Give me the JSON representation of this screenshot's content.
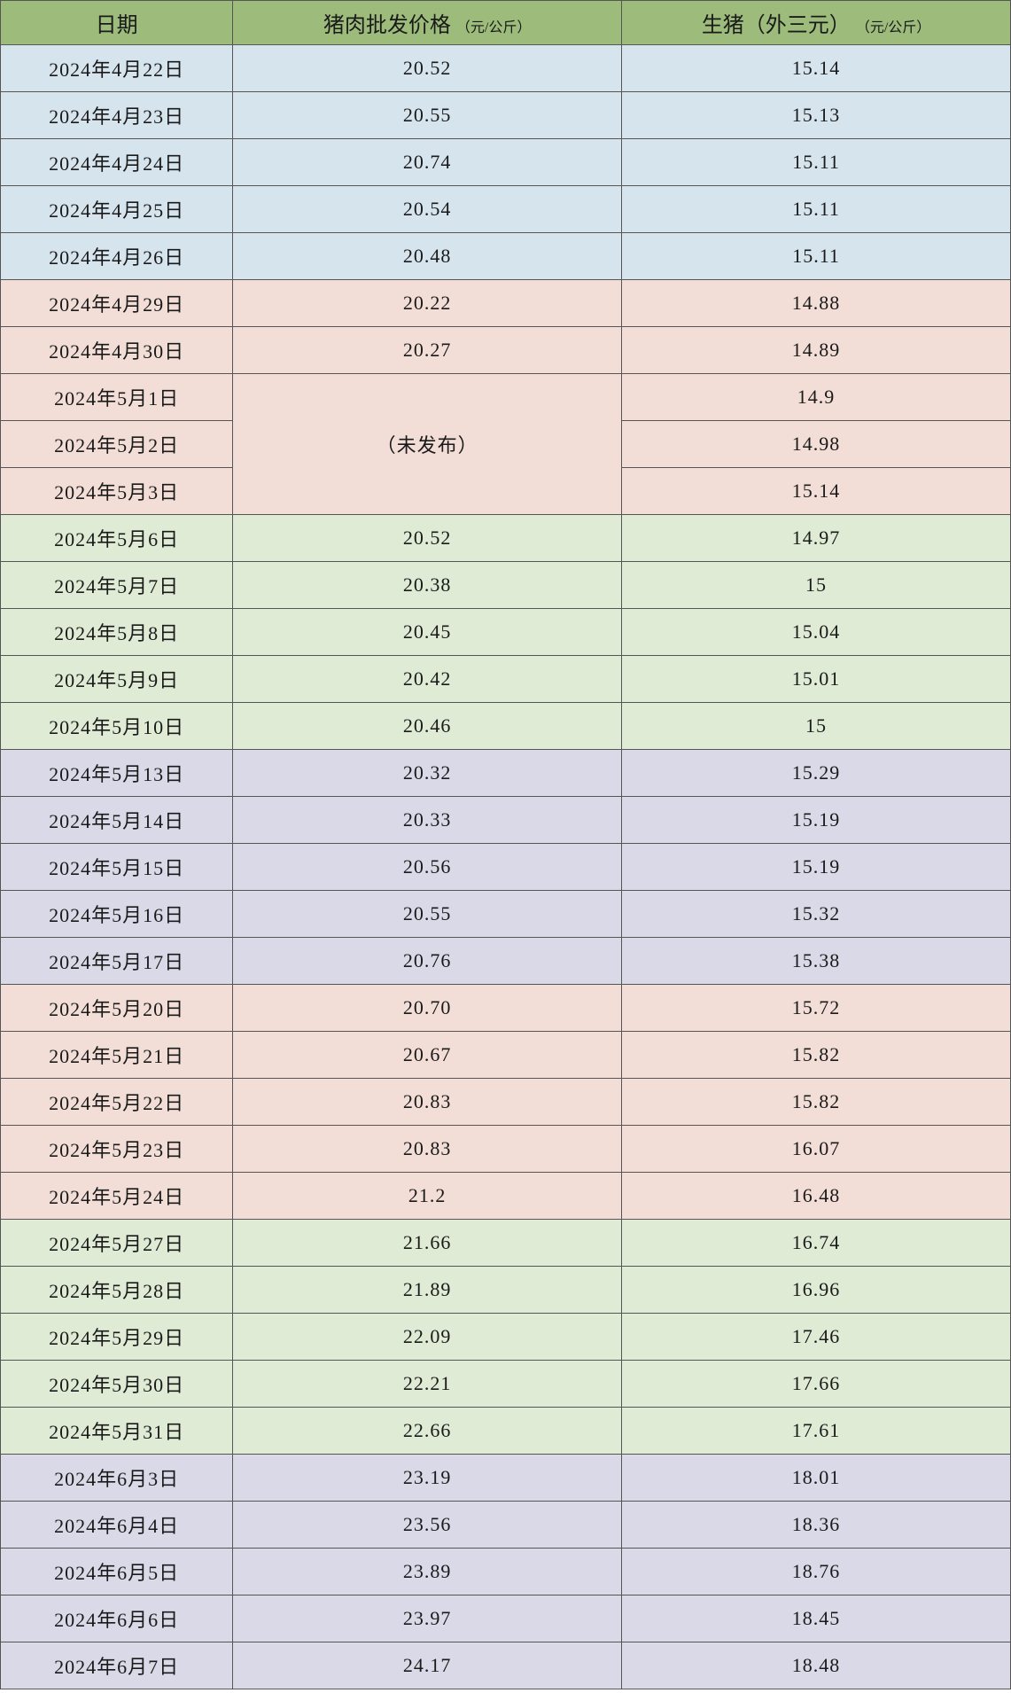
{
  "table": {
    "columns": [
      {
        "label": "日期",
        "unit": ""
      },
      {
        "label": "猪肉批发价格",
        "unit": "（元/公斤）"
      },
      {
        "label": "生猪（外三元）",
        "unit": "（元/公斤）"
      }
    ],
    "merged_label": "（未发布）",
    "colors": {
      "header_bg": "#9dbc7b",
      "border": "#555555",
      "blue": "#d6e4ee",
      "pink": "#f2ded7",
      "green": "#dfebd5",
      "purple": "#dad9e8"
    },
    "font": {
      "header_size": 24,
      "unit_size": 16,
      "cell_size": 22
    },
    "rows": [
      {
        "date": "2024年4月22日",
        "pork": "20.52",
        "hog": "15.14",
        "group": "blue"
      },
      {
        "date": "2024年4月23日",
        "pork": "20.55",
        "hog": "15.13",
        "group": "blue"
      },
      {
        "date": "2024年4月24日",
        "pork": "20.74",
        "hog": "15.11",
        "group": "blue"
      },
      {
        "date": "2024年4月25日",
        "pork": "20.54",
        "hog": "15.11",
        "group": "blue"
      },
      {
        "date": "2024年4月26日",
        "pork": "20.48",
        "hog": "15.11",
        "group": "blue"
      },
      {
        "date": "2024年4月29日",
        "pork": "20.22",
        "hog": "14.88",
        "group": "pink"
      },
      {
        "date": "2024年4月30日",
        "pork": "20.27",
        "hog": "14.89",
        "group": "pink"
      },
      {
        "date": "2024年5月1日",
        "pork": null,
        "hog": "14.9",
        "group": "pink",
        "merge_start": true,
        "merge_span": 3
      },
      {
        "date": "2024年5月2日",
        "pork": null,
        "hog": "14.98",
        "group": "pink",
        "merged": true
      },
      {
        "date": "2024年5月3日",
        "pork": null,
        "hog": "15.14",
        "group": "pink",
        "merged": true
      },
      {
        "date": "2024年5月6日",
        "pork": "20.52",
        "hog": "14.97",
        "group": "green"
      },
      {
        "date": "2024年5月7日",
        "pork": "20.38",
        "hog": "15",
        "group": "green"
      },
      {
        "date": "2024年5月8日",
        "pork": "20.45",
        "hog": "15.04",
        "group": "green"
      },
      {
        "date": "2024年5月9日",
        "pork": "20.42",
        "hog": "15.01",
        "group": "green"
      },
      {
        "date": "2024年5月10日",
        "pork": "20.46",
        "hog": "15",
        "group": "green"
      },
      {
        "date": "2024年5月13日",
        "pork": "20.32",
        "hog": "15.29",
        "group": "purple"
      },
      {
        "date": "2024年5月14日",
        "pork": "20.33",
        "hog": "15.19",
        "group": "purple"
      },
      {
        "date": "2024年5月15日",
        "pork": "20.56",
        "hog": "15.19",
        "group": "purple"
      },
      {
        "date": "2024年5月16日",
        "pork": "20.55",
        "hog": "15.32",
        "group": "purple"
      },
      {
        "date": "2024年5月17日",
        "pork": "20.76",
        "hog": "15.38",
        "group": "purple"
      },
      {
        "date": "2024年5月20日",
        "pork": "20.70",
        "hog": "15.72",
        "group": "pink"
      },
      {
        "date": "2024年5月21日",
        "pork": "20.67",
        "hog": "15.82",
        "group": "pink"
      },
      {
        "date": "2024年5月22日",
        "pork": "20.83",
        "hog": "15.82",
        "group": "pink"
      },
      {
        "date": "2024年5月23日",
        "pork": "20.83",
        "hog": "16.07",
        "group": "pink"
      },
      {
        "date": "2024年5月24日",
        "pork": "21.2",
        "hog": "16.48",
        "group": "pink"
      },
      {
        "date": "2024年5月27日",
        "pork": "21.66",
        "hog": "16.74",
        "group": "green"
      },
      {
        "date": "2024年5月28日",
        "pork": "21.89",
        "hog": "16.96",
        "group": "green"
      },
      {
        "date": "2024年5月29日",
        "pork": "22.09",
        "hog": "17.46",
        "group": "green"
      },
      {
        "date": "2024年5月30日",
        "pork": "22.21",
        "hog": "17.66",
        "group": "green"
      },
      {
        "date": "2024年5月31日",
        "pork": "22.66",
        "hog": "17.61",
        "group": "green"
      },
      {
        "date": "2024年6月3日",
        "pork": "23.19",
        "hog": "18.01",
        "group": "purple"
      },
      {
        "date": "2024年6月4日",
        "pork": "23.56",
        "hog": "18.36",
        "group": "purple"
      },
      {
        "date": "2024年6月5日",
        "pork": "23.89",
        "hog": "18.76",
        "group": "purple"
      },
      {
        "date": "2024年6月6日",
        "pork": "23.97",
        "hog": "18.45",
        "group": "purple"
      },
      {
        "date": "2024年6月7日",
        "pork": "24.17",
        "hog": "18.48",
        "group": "purple"
      }
    ]
  }
}
